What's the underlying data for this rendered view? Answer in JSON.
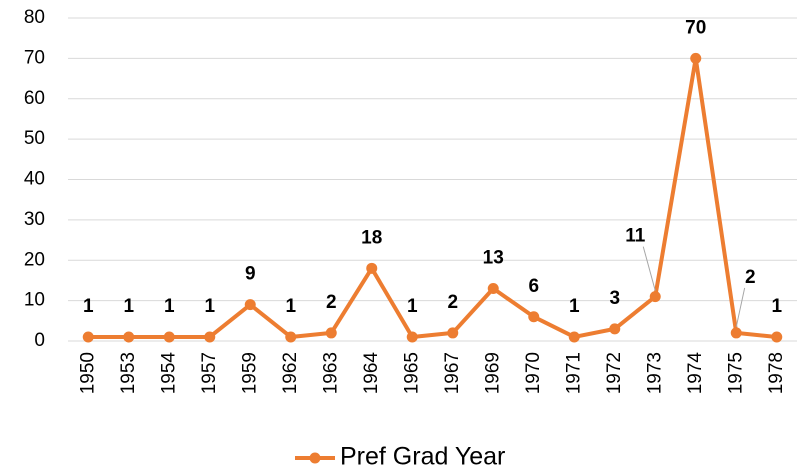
{
  "chart_data": {
    "type": "line",
    "categories": [
      "1950",
      "1953",
      "1954",
      "1957",
      "1959",
      "1962",
      "1963",
      "1964",
      "1965",
      "1967",
      "1969",
      "1970",
      "1971",
      "1972",
      "1973",
      "1974",
      "1975",
      "1978"
    ],
    "series": [
      {
        "name": "Pref Grad Year",
        "color": "#ed7d31",
        "values": [
          1,
          1,
          1,
          1,
          9,
          1,
          2,
          18,
          1,
          2,
          13,
          6,
          1,
          3,
          11,
          70,
          2,
          1
        ]
      }
    ],
    "ylim": [
      0,
      80
    ],
    "yticks": [
      0,
      10,
      20,
      30,
      40,
      50,
      60,
      70,
      80
    ],
    "grid": true,
    "legend": "bottom"
  }
}
